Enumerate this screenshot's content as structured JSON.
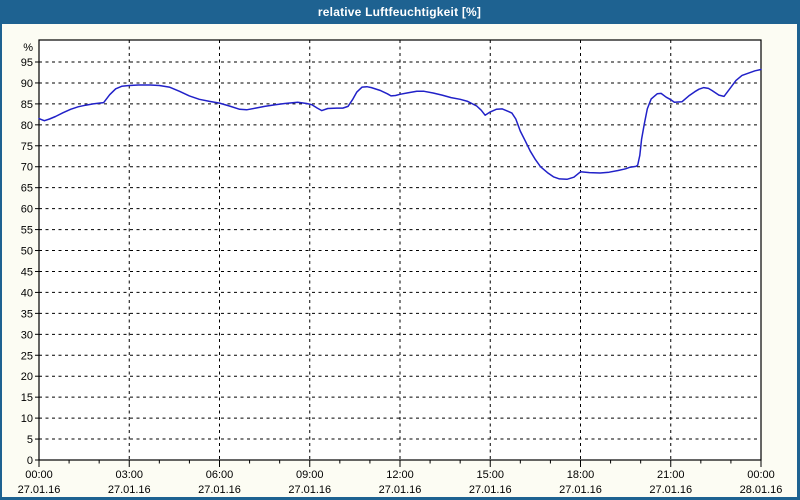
{
  "window": {
    "title": "relative Luftfeuchtigkeit [%]"
  },
  "colors": {
    "titlebar": "#1E6291",
    "frame": "#1E6291",
    "line": "#2121C8",
    "grid": "#000000",
    "axis": "#000000",
    "plot_bg": "#FFFFFF",
    "page_bg": "#FCFCF3",
    "title_text": "#FFFFFF",
    "label_text": "#000000"
  },
  "chart_data": {
    "type": "line",
    "title": "relative Luftfeuchtigkeit [%]",
    "xlabel": "",
    "ylabel": "%",
    "unit_label": "%",
    "grid": "dashed",
    "legend": "none",
    "ylim": [
      0,
      100
    ],
    "y_tick_step": 5,
    "y_ticks": [
      0,
      5,
      10,
      15,
      20,
      25,
      30,
      35,
      40,
      45,
      50,
      55,
      60,
      65,
      70,
      75,
      80,
      85,
      90,
      95
    ],
    "x_range_hours": [
      0,
      24
    ],
    "x_major_step_hours": 3,
    "x_minor_step_hours": 1,
    "x_ticks": [
      {
        "hour": 0,
        "time": "00:00",
        "date": "27.01.16"
      },
      {
        "hour": 3,
        "time": "03:00",
        "date": "27.01.16"
      },
      {
        "hour": 6,
        "time": "06:00",
        "date": "27.01.16"
      },
      {
        "hour": 9,
        "time": "09:00",
        "date": "27.01.16"
      },
      {
        "hour": 12,
        "time": "12:00",
        "date": "27.01.16"
      },
      {
        "hour": 15,
        "time": "15:00",
        "date": "27.01.16"
      },
      {
        "hour": 18,
        "time": "18:00",
        "date": "27.01.16"
      },
      {
        "hour": 21,
        "time": "21:00",
        "date": "27.01.16"
      },
      {
        "hour": 24,
        "time": "00:00",
        "date": "28.01.16"
      }
    ],
    "series": [
      {
        "name": "relative Luftfeuchtigkeit [%]",
        "color": "#2121C8",
        "points": [
          [
            0.0,
            81.5
          ],
          [
            0.1,
            81.2
          ],
          [
            0.18,
            81.0
          ],
          [
            0.35,
            81.4
          ],
          [
            0.55,
            82.0
          ],
          [
            0.8,
            82.9
          ],
          [
            1.05,
            83.7
          ],
          [
            1.3,
            84.3
          ],
          [
            1.55,
            84.7
          ],
          [
            1.8,
            85.0
          ],
          [
            2.0,
            85.2
          ],
          [
            2.15,
            85.3
          ],
          [
            2.35,
            87.2
          ],
          [
            2.55,
            88.6
          ],
          [
            2.75,
            89.2
          ],
          [
            3.0,
            89.4
          ],
          [
            3.3,
            89.5
          ],
          [
            3.7,
            89.5
          ],
          [
            4.0,
            89.4
          ],
          [
            4.33,
            89.0
          ],
          [
            4.67,
            88.0
          ],
          [
            5.0,
            86.9
          ],
          [
            5.33,
            86.1
          ],
          [
            5.67,
            85.6
          ],
          [
            6.0,
            85.2
          ],
          [
            6.33,
            84.5
          ],
          [
            6.67,
            83.7
          ],
          [
            6.9,
            83.6
          ],
          [
            7.2,
            84.0
          ],
          [
            7.5,
            84.4
          ],
          [
            7.85,
            84.8
          ],
          [
            8.17,
            85.1
          ],
          [
            8.6,
            85.4
          ],
          [
            8.9,
            85.1
          ],
          [
            9.07,
            84.8
          ],
          [
            9.25,
            84.0
          ],
          [
            9.4,
            83.4
          ],
          [
            9.6,
            83.9
          ],
          [
            9.9,
            84.0
          ],
          [
            10.1,
            84.0
          ],
          [
            10.27,
            84.4
          ],
          [
            10.42,
            86.0
          ],
          [
            10.56,
            87.8
          ],
          [
            10.74,
            89.0
          ],
          [
            10.9,
            89.1
          ],
          [
            11.05,
            88.9
          ],
          [
            11.35,
            88.2
          ],
          [
            11.58,
            87.4
          ],
          [
            11.7,
            86.9
          ],
          [
            11.85,
            87.0
          ],
          [
            12.0,
            87.3
          ],
          [
            12.23,
            87.6
          ],
          [
            12.56,
            88.0
          ],
          [
            12.8,
            88.0
          ],
          [
            13.1,
            87.6
          ],
          [
            13.4,
            87.1
          ],
          [
            13.7,
            86.5
          ],
          [
            14.0,
            86.1
          ],
          [
            14.25,
            85.6
          ],
          [
            14.55,
            84.5
          ],
          [
            14.7,
            83.5
          ],
          [
            14.83,
            82.3
          ],
          [
            15.0,
            83.1
          ],
          [
            15.2,
            83.7
          ],
          [
            15.4,
            83.8
          ],
          [
            15.6,
            83.2
          ],
          [
            15.72,
            82.8
          ],
          [
            15.85,
            81.4
          ],
          [
            16.0,
            78.5
          ],
          [
            16.17,
            76.1
          ],
          [
            16.33,
            73.7
          ],
          [
            16.5,
            71.7
          ],
          [
            16.67,
            70.0
          ],
          [
            16.9,
            68.6
          ],
          [
            17.1,
            67.6
          ],
          [
            17.3,
            67.1
          ],
          [
            17.55,
            67.0
          ],
          [
            17.78,
            67.5
          ],
          [
            18.0,
            68.8
          ],
          [
            18.3,
            68.6
          ],
          [
            18.65,
            68.5
          ],
          [
            18.95,
            68.7
          ],
          [
            19.25,
            69.1
          ],
          [
            19.5,
            69.5
          ],
          [
            19.65,
            69.9
          ],
          [
            19.85,
            70.1
          ],
          [
            19.9,
            70.4
          ],
          [
            19.97,
            72.7
          ],
          [
            20.03,
            76.6
          ],
          [
            20.12,
            80.2
          ],
          [
            20.22,
            83.8
          ],
          [
            20.35,
            86.2
          ],
          [
            20.55,
            87.4
          ],
          [
            20.68,
            87.5
          ],
          [
            20.85,
            86.6
          ],
          [
            21.0,
            86.0
          ],
          [
            21.12,
            85.4
          ],
          [
            21.37,
            85.5
          ],
          [
            21.6,
            86.9
          ],
          [
            21.8,
            87.9
          ],
          [
            21.94,
            88.5
          ],
          [
            22.1,
            88.9
          ],
          [
            22.25,
            88.7
          ],
          [
            22.37,
            88.2
          ],
          [
            22.6,
            87.1
          ],
          [
            22.77,
            86.8
          ],
          [
            22.94,
            88.4
          ],
          [
            23.17,
            90.6
          ],
          [
            23.37,
            91.8
          ],
          [
            23.6,
            92.4
          ],
          [
            23.8,
            92.9
          ],
          [
            24.0,
            93.2
          ]
        ]
      }
    ]
  }
}
